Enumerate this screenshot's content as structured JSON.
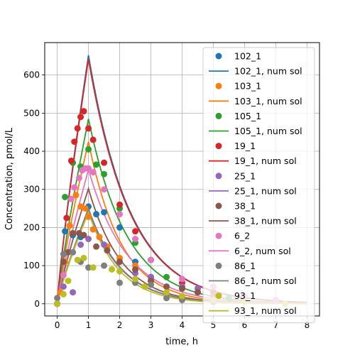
{
  "chart_data": {
    "type": "scatter",
    "title": "",
    "xlabel": "time, h",
    "ylabel": "Concentration, pmol/L",
    "xlim": [
      -0.4,
      8.4
    ],
    "ylim": [
      -32,
      685
    ],
    "xticks": [
      0,
      1,
      2,
      3,
      4,
      5,
      6,
      7,
      8
    ],
    "yticks": [
      0,
      100,
      200,
      300,
      400,
      500,
      600
    ],
    "grid": true,
    "legend_position": "upper-right",
    "series": [
      {
        "name": "102_1",
        "fit_name": "102_1, num sol",
        "color": "#1f77b4",
        "peak": 652,
        "decay": 0.55,
        "points": [
          [
            0,
            0
          ],
          [
            0.25,
            190
          ],
          [
            0.5,
            180
          ],
          [
            0.75,
            175
          ],
          [
            1,
            255
          ],
          [
            1.25,
            235
          ],
          [
            1.5,
            240
          ],
          [
            2,
            200
          ],
          [
            2.5,
            110
          ],
          [
            3,
            70
          ],
          [
            4,
            40
          ],
          [
            5,
            30
          ],
          [
            6,
            15
          ]
        ]
      },
      {
        "name": "103_1",
        "fit_name": "103_1, num sol",
        "color": "#ff7f0e",
        "peak": 425,
        "decay": 0.7,
        "points": [
          [
            0,
            0
          ],
          [
            0.1,
            30
          ],
          [
            0.25,
            110
          ],
          [
            0.4,
            205
          ],
          [
            0.6,
            285
          ],
          [
            0.75,
            255
          ],
          [
            0.9,
            250
          ],
          [
            1,
            228
          ],
          [
            1.15,
            195
          ],
          [
            1.35,
            175
          ],
          [
            1.6,
            150
          ],
          [
            2,
            120
          ],
          [
            2.5,
            100
          ],
          [
            3,
            60
          ]
        ]
      },
      {
        "name": "105_1",
        "fit_name": "105_1, num sol",
        "color": "#2ca02c",
        "peak": 485,
        "decay": 0.6,
        "points": [
          [
            0,
            0
          ],
          [
            0.25,
            280
          ],
          [
            0.5,
            370
          ],
          [
            0.75,
            360
          ],
          [
            1,
            405
          ],
          [
            1.25,
            365
          ],
          [
            1.5,
            340
          ],
          [
            2,
            250
          ],
          [
            2.5,
            160
          ],
          [
            3.5,
            70
          ],
          [
            4.5,
            30
          ],
          [
            5.5,
            15
          ]
        ]
      },
      {
        "name": "19_1",
        "fit_name": "19_1, num sol",
        "color": "#d62728",
        "peak": 642,
        "decay": 0.55,
        "points": [
          [
            0,
            0
          ],
          [
            0.3,
            225
          ],
          [
            0.45,
            375
          ],
          [
            0.55,
            425
          ],
          [
            0.65,
            460
          ],
          [
            0.75,
            490
          ],
          [
            0.85,
            505
          ],
          [
            1,
            460
          ],
          [
            1.15,
            430
          ],
          [
            1.5,
            370
          ],
          [
            2,
            260
          ],
          [
            2.5,
            190
          ],
          [
            3,
            115
          ],
          [
            4,
            55
          ],
          [
            5,
            30
          ],
          [
            6,
            15
          ]
        ]
      },
      {
        "name": "25_1",
        "fit_name": "25_1, num sol",
        "color": "#9467bd",
        "peak": 245,
        "decay": 0.7,
        "points": [
          [
            0,
            0
          ],
          [
            0.2,
            45
          ],
          [
            0.5,
            30
          ],
          [
            0.75,
            155
          ],
          [
            1,
            170
          ],
          [
            1.5,
            155
          ],
          [
            2,
            110
          ],
          [
            2.5,
            80
          ],
          [
            3,
            70
          ],
          [
            4,
            45
          ],
          [
            4.5,
            40
          ],
          [
            5,
            20
          ],
          [
            6,
            15
          ],
          [
            7,
            10
          ]
        ]
      },
      {
        "name": "38_1",
        "fit_name": "38_1, num sol",
        "color": "#8c564b",
        "peak": 302,
        "decay": 0.7,
        "points": [
          [
            0,
            0
          ],
          [
            0.2,
            110
          ],
          [
            0.35,
            135
          ],
          [
            0.5,
            185
          ],
          [
            0.7,
            185
          ],
          [
            0.85,
            180
          ],
          [
            1.25,
            150
          ],
          [
            1.6,
            140
          ],
          [
            2,
            110
          ],
          [
            2.5,
            90
          ],
          [
            3,
            60
          ],
          [
            3.5,
            45
          ],
          [
            4,
            40
          ],
          [
            4.5,
            30
          ],
          [
            5,
            20
          ],
          [
            6,
            10
          ]
        ]
      },
      {
        "name": "6_2",
        "fit_name": "6_2, num sol",
        "color": "#e377c2",
        "peak": 352,
        "decay": 0.6,
        "points": [
          [
            0,
            0
          ],
          [
            0.2,
            75
          ],
          [
            0.45,
            275
          ],
          [
            0.55,
            305
          ],
          [
            0.7,
            330
          ],
          [
            0.8,
            350
          ],
          [
            0.9,
            355
          ],
          [
            1,
            355
          ],
          [
            1.15,
            345
          ],
          [
            1.5,
            300
          ],
          [
            2,
            235
          ],
          [
            2.5,
            170
          ],
          [
            3,
            115
          ],
          [
            4,
            65
          ],
          [
            5,
            45
          ],
          [
            6,
            20
          ],
          [
            7,
            10
          ]
        ]
      },
      {
        "name": "86_1",
        "fit_name": "86_1, num sol",
        "color": "#7f7f7f",
        "peak": 250,
        "decay": 0.7,
        "points": [
          [
            0,
            15
          ],
          [
            0.2,
            130
          ],
          [
            0.5,
            135
          ],
          [
            0.75,
            110
          ],
          [
            1,
            95
          ],
          [
            1.5,
            100
          ],
          [
            2,
            55
          ],
          [
            2.5,
            55
          ],
          [
            3,
            50
          ],
          [
            3.5,
            15
          ],
          [
            4,
            10
          ],
          [
            5,
            5
          ],
          [
            6,
            5
          ]
        ]
      },
      {
        "name": "93_1",
        "fit_name": "93_1, num sol",
        "color": "#bcbd22",
        "peak": 240,
        "decay": 0.75,
        "points": [
          [
            0,
            0
          ],
          [
            0.2,
            25
          ],
          [
            0.35,
            60
          ],
          [
            0.65,
            115
          ],
          [
            0.85,
            120
          ],
          [
            1.15,
            95
          ],
          [
            1.75,
            90
          ],
          [
            2,
            85
          ],
          [
            2.5,
            65
          ],
          [
            2.8,
            45
          ],
          [
            3.5,
            30
          ],
          [
            4,
            20
          ],
          [
            5,
            10
          ],
          [
            6,
            5
          ],
          [
            7.3,
            0
          ]
        ]
      }
    ]
  }
}
